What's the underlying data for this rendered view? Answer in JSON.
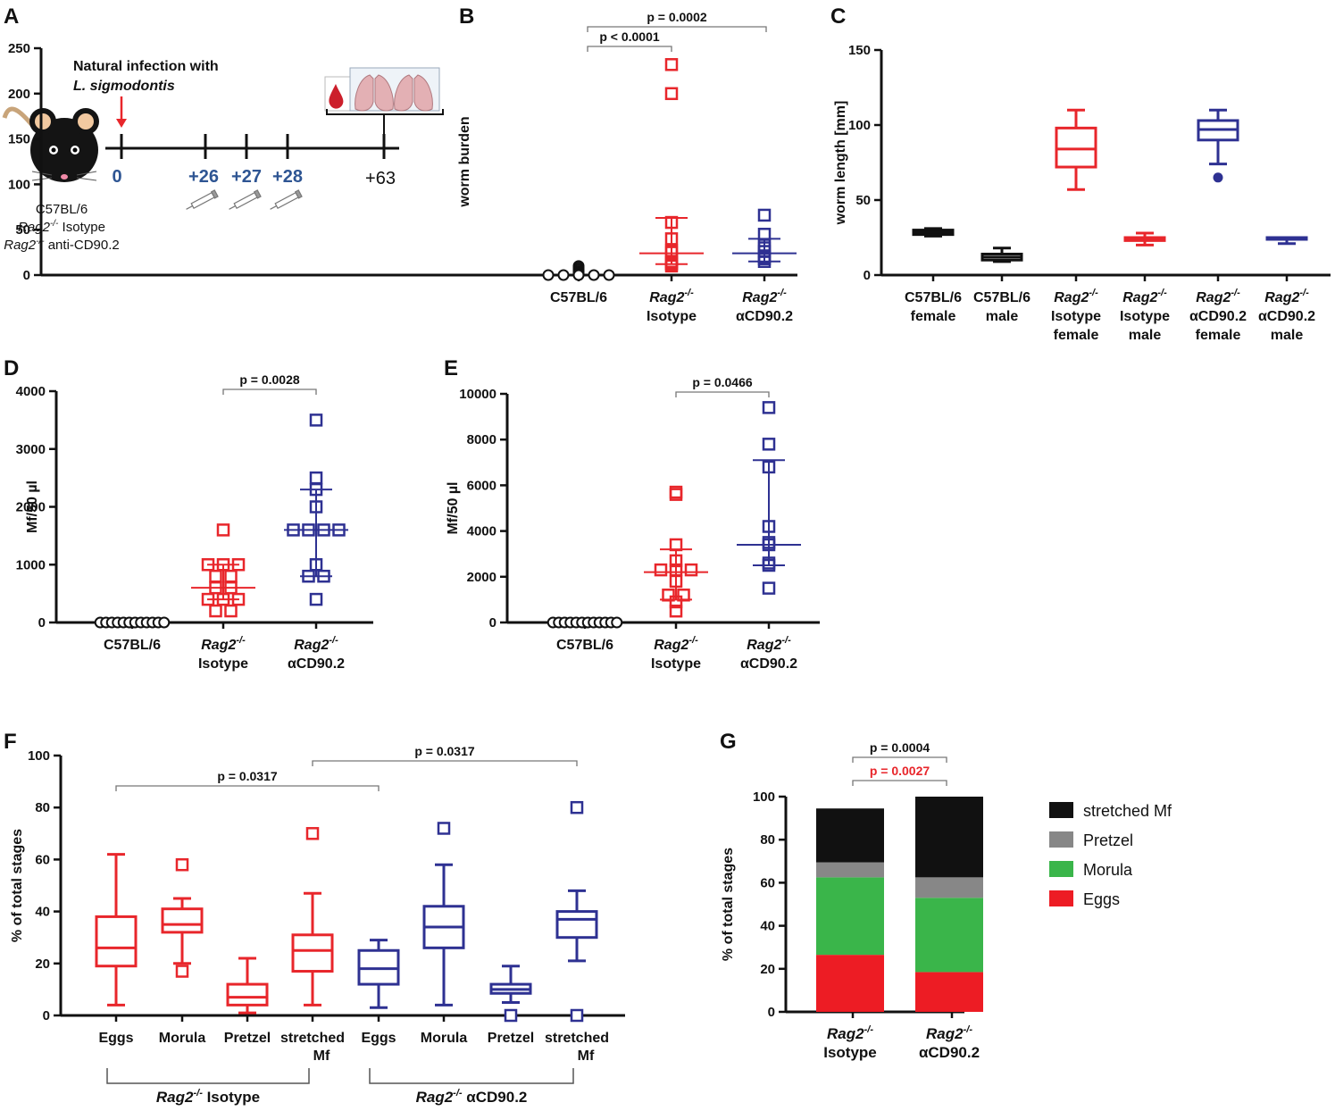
{
  "colors": {
    "black": "#111111",
    "red": "#e8262b",
    "blue": "#2e3192",
    "grey": "#878787",
    "green": "#3ab54a",
    "stack_red": "#ed1c24",
    "pval_red": "#e8262b"
  },
  "panel_A": {
    "label": "A",
    "title_line1": "Natural infection with",
    "title_line2": "L. sigmodontis",
    "timepoints": [
      "0",
      "+26",
      "+27",
      "+28",
      "+63"
    ],
    "groups": [
      {
        "main": "C57BL/6",
        "sup": ""
      },
      {
        "main": "Rag2",
        "sup": "-/-",
        "suffix": " Isotype"
      },
      {
        "main": "Rag2",
        "sup": "-/-",
        "suffix": " anti-CD90.2"
      }
    ],
    "icons": [
      "mouse-icon",
      "syringe-icon",
      "blood-drop-icon",
      "lung-icon"
    ]
  },
  "chart_data": [
    {
      "id": "B",
      "type": "scatter",
      "label": "B",
      "ylabel": "worm burden",
      "ylim": [
        0,
        250
      ],
      "yticks": [
        0,
        50,
        100,
        150,
        200,
        250
      ],
      "categories": [
        {
          "line1": "C57BL/6",
          "sup": "",
          "line2": ""
        },
        {
          "line1": "Rag2",
          "sup": "-/-",
          "line2": "Isotype"
        },
        {
          "line1": "Rag2",
          "sup": "-/-",
          "line2": "αCD90.2"
        }
      ],
      "series": [
        {
          "name": "C57BL/6",
          "color": "black",
          "marker": "circle",
          "values": [
            10,
            8,
            6,
            4,
            3,
            2,
            1,
            0,
            0,
            0,
            0,
            0
          ],
          "median": 0,
          "q1": 0,
          "q3": 0
        },
        {
          "name": "Rag2-/- Isotype",
          "color": "red",
          "marker": "square",
          "values": [
            232,
            200,
            58,
            40,
            27,
            25,
            15,
            13,
            12,
            10
          ],
          "median": 24,
          "q1": 12,
          "q3": 63
        },
        {
          "name": "Rag2-/- αCD90.2",
          "color": "blue",
          "marker": "square",
          "values": [
            66,
            45,
            33,
            30,
            26,
            20,
            18,
            15
          ],
          "median": 24,
          "q1": 15,
          "q3": 40
        }
      ],
      "pvalues": [
        {
          "text": "p < 0.0001",
          "from": 0,
          "to": 1,
          "level": 0
        },
        {
          "text": "p = 0.0002",
          "from": 0,
          "to": 2,
          "level": 1
        }
      ]
    },
    {
      "id": "C",
      "type": "box",
      "label": "C",
      "ylabel": "worm length [mm]",
      "ylim": [
        0,
        150
      ],
      "yticks": [
        0,
        50,
        100,
        150
      ],
      "categories": [
        {
          "line1": "C57BL/6",
          "sup": "",
          "line2": "female",
          "italic": false
        },
        {
          "line1": "C57BL/6",
          "sup": "",
          "line2": "male",
          "italic": false
        },
        {
          "line1": "Rag2",
          "sup": "-/-",
          "line2": "Isotype",
          "line3": "female"
        },
        {
          "line1": "Rag2",
          "sup": "-/-",
          "line2": "Isotype",
          "line3": "male"
        },
        {
          "line1": "Rag2",
          "sup": "-/-",
          "line2": "αCD90.2",
          "line3": "female"
        },
        {
          "line1": "Rag2",
          "sup": "-/-",
          "line2": "αCD90.2",
          "line3": "male"
        }
      ],
      "boxes": [
        {
          "color": "black",
          "min": 26,
          "q1": 27,
          "median": 28.5,
          "q3": 30,
          "max": 31
        },
        {
          "color": "black",
          "min": 9,
          "q1": 10,
          "median": 12,
          "q3": 14,
          "max": 18
        },
        {
          "color": "red",
          "min": 57,
          "q1": 72,
          "median": 84,
          "q3": 98,
          "max": 110
        },
        {
          "color": "red",
          "min": 20,
          "q1": 23,
          "median": 23.5,
          "q3": 25,
          "max": 28
        },
        {
          "color": "blue",
          "min": 74,
          "q1": 90,
          "median": 97,
          "q3": 103,
          "max": 110,
          "outliers": [
            65
          ]
        },
        {
          "color": "blue",
          "min": 21,
          "q1": 24,
          "median": 24.5,
          "q3": 25,
          "max": 25
        }
      ]
    },
    {
      "id": "D",
      "type": "scatter",
      "label": "D",
      "ylabel": "Mf/50 µl",
      "ylim": [
        0,
        4000
      ],
      "yticks": [
        0,
        1000,
        2000,
        3000,
        4000
      ],
      "categories": [
        {
          "line1": "C57BL/6",
          "sup": "",
          "line2": ""
        },
        {
          "line1": "Rag2",
          "sup": "-/-",
          "line2": "Isotype"
        },
        {
          "line1": "Rag2",
          "sup": "-/-",
          "line2": "αCD90.2"
        }
      ],
      "series": [
        {
          "name": "C57BL/6",
          "color": "black",
          "marker": "circle",
          "values": [
            0,
            0,
            0,
            0,
            0,
            0,
            0,
            0,
            0,
            0,
            0,
            0
          ],
          "median": 0,
          "q1": 0,
          "q3": 0
        },
        {
          "name": "Rag2-/- Isotype",
          "color": "red",
          "marker": "square",
          "values": [
            1600,
            1000,
            1000,
            1000,
            800,
            800,
            600,
            600,
            400,
            400,
            400,
            200,
            200
          ],
          "median": 600,
          "q1": 400,
          "q3": 1000
        },
        {
          "name": "Rag2-/- αCD90.2",
          "color": "blue",
          "marker": "square",
          "values": [
            3500,
            2500,
            2300,
            2000,
            1600,
            1600,
            1600,
            1600,
            1000,
            800,
            800,
            400
          ],
          "median": 1600,
          "q1": 800,
          "q3": 2300
        }
      ],
      "pvalues": [
        {
          "text": "p = 0.0028",
          "from": 1,
          "to": 2,
          "level": 0
        }
      ]
    },
    {
      "id": "E",
      "type": "scatter",
      "label": "E",
      "ylabel": "Mf/50 µl",
      "ylim": [
        0,
        10000
      ],
      "yticks": [
        0,
        2000,
        4000,
        6000,
        8000,
        10000
      ],
      "categories": [
        {
          "line1": "C57BL/6",
          "sup": "",
          "line2": ""
        },
        {
          "line1": "Rag2",
          "sup": "-/-",
          "line2": "Isotype"
        },
        {
          "line1": "Rag2",
          "sup": "-/-",
          "line2": "αCD90.2"
        }
      ],
      "series": [
        {
          "name": "C57BL/6",
          "color": "black",
          "marker": "circle",
          "values": [
            0,
            0,
            0,
            0,
            0,
            0,
            0,
            0,
            0,
            0,
            0,
            0
          ],
          "median": 0,
          "q1": 0,
          "q3": 0
        },
        {
          "name": "Rag2-/- Isotype",
          "color": "red",
          "marker": "square",
          "values": [
            5700,
            5600,
            3400,
            2700,
            2300,
            2300,
            2300,
            1800,
            1200,
            1200,
            900,
            500
          ],
          "median": 2200,
          "q1": 1000,
          "q3": 3200
        },
        {
          "name": "Rag2-/- αCD90.2",
          "color": "blue",
          "marker": "square",
          "values": [
            9400,
            7800,
            6800,
            4200,
            3500,
            3400,
            2600,
            2500,
            1500
          ],
          "median": 3400,
          "q1": 2500,
          "q3": 7100
        }
      ],
      "pvalues": [
        {
          "text": "p = 0.0466",
          "from": 1,
          "to": 2,
          "level": 0
        }
      ]
    },
    {
      "id": "F",
      "type": "box",
      "label": "F",
      "ylabel": "% of total stages",
      "ylim": [
        0,
        100
      ],
      "yticks": [
        0,
        20,
        40,
        60,
        80,
        100
      ],
      "categories": [
        {
          "line1": "Eggs",
          "line2": ""
        },
        {
          "line1": "Morula",
          "line2": ""
        },
        {
          "line1": "Pretzel",
          "line2": ""
        },
        {
          "line1": "stretched",
          "line2": "Mf"
        },
        {
          "line1": "Eggs",
          "line2": ""
        },
        {
          "line1": "Morula",
          "line2": ""
        },
        {
          "line1": "Pretzel",
          "line2": ""
        },
        {
          "line1": "stretched",
          "line2": "Mf"
        }
      ],
      "boxes": [
        {
          "color": "red",
          "min": 4,
          "q1": 19,
          "median": 26,
          "q3": 38,
          "max": 62
        },
        {
          "color": "red",
          "min": 20,
          "q1": 32,
          "median": 35,
          "q3": 41,
          "max": 45,
          "outliers": [
            58,
            17
          ]
        },
        {
          "color": "red",
          "min": 1,
          "q1": 4,
          "median": 7,
          "q3": 12,
          "max": 22
        },
        {
          "color": "red",
          "min": 4,
          "q1": 17,
          "median": 25,
          "q3": 31,
          "max": 47,
          "outliers": [
            70
          ]
        },
        {
          "color": "blue",
          "min": 3,
          "q1": 12,
          "median": 18,
          "q3": 25,
          "max": 29
        },
        {
          "color": "blue",
          "min": 4,
          "q1": 26,
          "median": 34,
          "q3": 42,
          "max": 58,
          "outliers": [
            72
          ]
        },
        {
          "color": "blue",
          "min": 5,
          "q1": 8.5,
          "median": 10,
          "q3": 12,
          "max": 19,
          "outliers": [
            0
          ]
        },
        {
          "color": "blue",
          "min": 21,
          "q1": 30,
          "median": 37,
          "q3": 40,
          "max": 48,
          "outliers": [
            80,
            0
          ]
        }
      ],
      "group_labels": [
        {
          "main": "Rag2",
          "sup": "-/-",
          "suffix": " Isotype",
          "from": 0,
          "to": 3
        },
        {
          "main": "Rag2",
          "sup": "-/-",
          "suffix": " αCD90.2",
          "from": 4,
          "to": 7
        }
      ],
      "pvalues": [
        {
          "text": "p = 0.0317",
          "from": 0,
          "to": 4,
          "level": 0
        },
        {
          "text": "p = 0.0317",
          "from": 3,
          "to": 7,
          "level": 1
        }
      ]
    },
    {
      "id": "G",
      "type": "stacked-bar",
      "label": "G",
      "ylabel": "% of total stages",
      "ylim": [
        0,
        100
      ],
      "yticks": [
        0,
        20,
        40,
        60,
        80,
        100
      ],
      "categories": [
        {
          "line1": "Rag2",
          "sup": "-/-",
          "line2": "Isotype"
        },
        {
          "line1": "Rag2",
          "sup": "-/-",
          "line2": "αCD90.2"
        }
      ],
      "series": [
        {
          "name": "Eggs",
          "color": "stack_red",
          "values": [
            26.5,
            18.5
          ]
        },
        {
          "name": "Morula",
          "color": "green",
          "values": [
            36,
            34.5
          ]
        },
        {
          "name": "Pretzel",
          "color": "grey",
          "values": [
            7,
            9.5
          ]
        },
        {
          "name": "stretched Mf",
          "color": "black",
          "values": [
            25,
            37.5
          ]
        }
      ],
      "legend": [
        "stretched Mf",
        "Pretzel",
        "Morula",
        "Eggs"
      ],
      "pvalues": [
        {
          "text": "p = 0.0004",
          "color": "black",
          "level": 1
        },
        {
          "text": "p = 0.0027",
          "color": "pval_red",
          "level": 0
        }
      ]
    }
  ]
}
